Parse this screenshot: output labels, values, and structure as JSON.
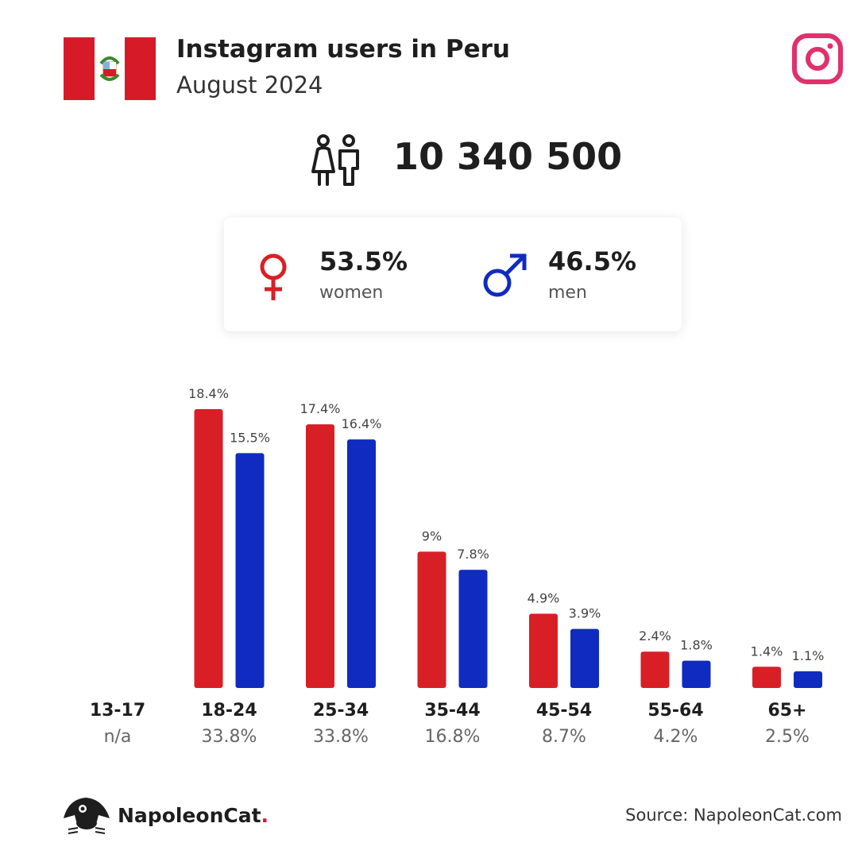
{
  "header": {
    "title": "Instagram users in Peru",
    "subtitle": "August 2024"
  },
  "total_users": "10 340 500",
  "gender": {
    "women_pct": "53.5%",
    "women_label": "women",
    "men_pct": "46.5%",
    "men_label": "men"
  },
  "colors": {
    "women": "#d91f26",
    "men": "#102bbf",
    "flag_red": "#d71a28",
    "instagram": "#e1306c"
  },
  "chart_data": {
    "type": "bar",
    "categories": [
      "13-17",
      "18-24",
      "25-34",
      "35-44",
      "45-54",
      "55-64",
      "65+"
    ],
    "category_shares": [
      "n/a",
      "33.8%",
      "33.8%",
      "16.8%",
      "8.7%",
      "4.2%",
      "2.5%"
    ],
    "series": [
      {
        "name": "women",
        "values": [
          null,
          18.4,
          17.4,
          9,
          4.9,
          2.4,
          1.4
        ],
        "labels": [
          "",
          "18.4%",
          "17.4%",
          "9%",
          "4.9%",
          "2.4%",
          "1.4%"
        ]
      },
      {
        "name": "men",
        "values": [
          null,
          15.5,
          16.4,
          7.8,
          3.9,
          1.8,
          1.1
        ],
        "labels": [
          "",
          "15.5%",
          "16.4%",
          "7.8%",
          "3.9%",
          "1.8%",
          "1.1%"
        ]
      }
    ],
    "ylim": [
      0,
      18.4
    ],
    "grid": false
  },
  "footer": {
    "brand": "NapoleonCat",
    "brand_dot": ".",
    "source": "Source: NapoleonCat.com"
  }
}
